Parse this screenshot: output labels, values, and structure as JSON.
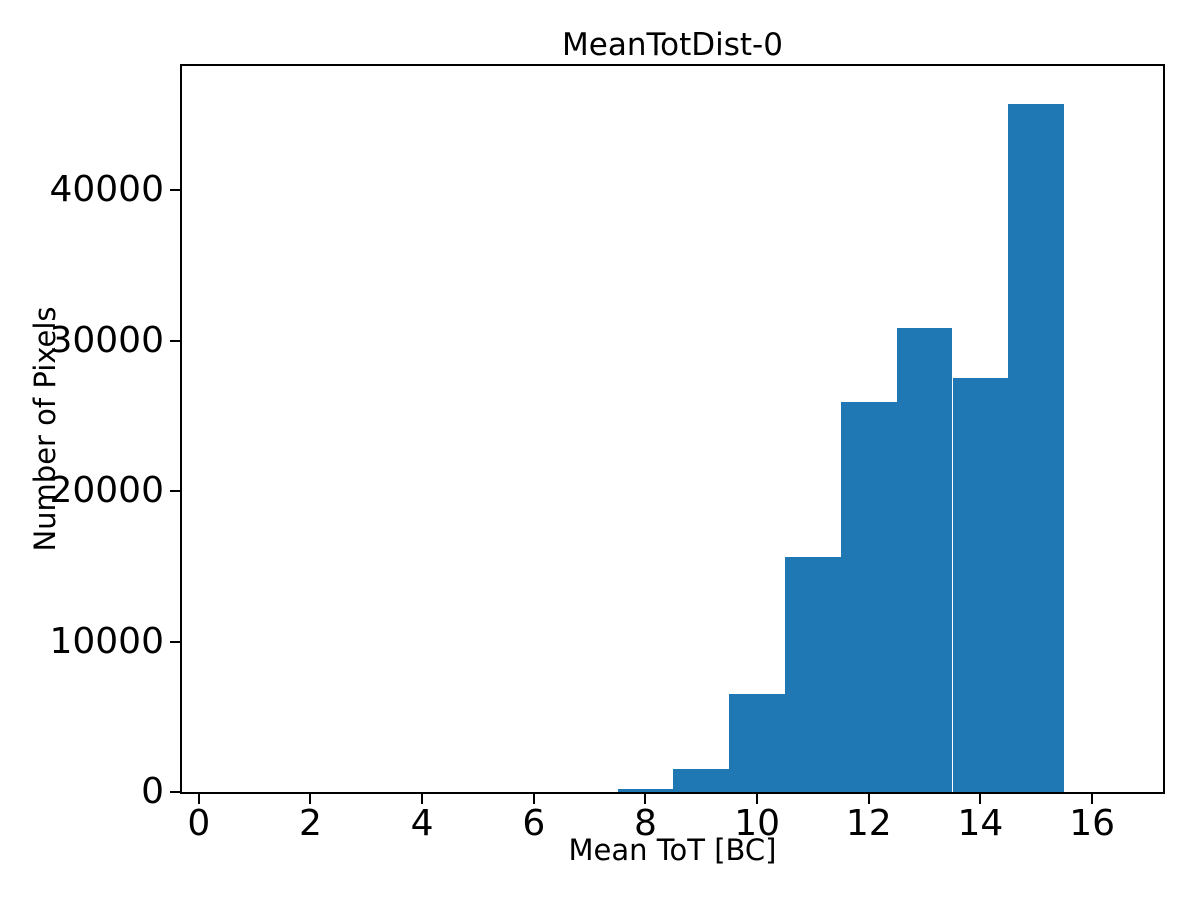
{
  "figure": {
    "background_color": "#ffffff",
    "text_color": "#000000"
  },
  "chart_data": {
    "type": "bar",
    "subtype": "histogram",
    "title": "MeanTotDist-0",
    "xlabel": "Mean ToT [BC]",
    "ylabel": "Number of Pixels",
    "bar_color": "#1f77b4",
    "bin_width": 1,
    "bin_left_edges": [
      7.5,
      8.5,
      9.5,
      10.5,
      11.5,
      12.5,
      13.5,
      14.5
    ],
    "counts": [
      200,
      1500,
      6500,
      15650,
      25950,
      30850,
      27500,
      45750
    ],
    "xticks": [
      0,
      2,
      4,
      6,
      8,
      10,
      12,
      14,
      16
    ],
    "yticks": [
      0,
      10000,
      20000,
      30000,
      40000
    ],
    "xlim": [
      -0.3,
      17.27
    ],
    "ylim": [
      0,
      48240
    ],
    "grid": false,
    "legend": null
  }
}
